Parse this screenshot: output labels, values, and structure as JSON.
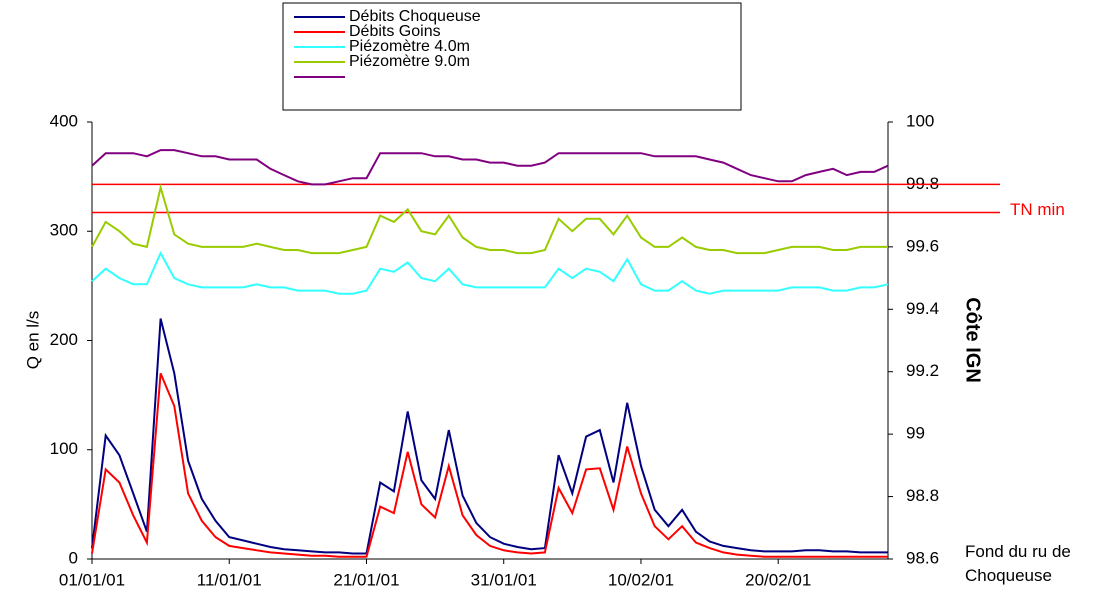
{
  "chart_data": {
    "type": "line",
    "x": [
      "2001-01-01",
      "2001-01-02",
      "2001-01-03",
      "2001-01-04",
      "2001-01-05",
      "2001-01-06",
      "2001-01-07",
      "2001-01-08",
      "2001-01-09",
      "2001-01-10",
      "2001-01-11",
      "2001-01-12",
      "2001-01-13",
      "2001-01-14",
      "2001-01-15",
      "2001-01-16",
      "2001-01-17",
      "2001-01-18",
      "2001-01-19",
      "2001-01-20",
      "2001-01-21",
      "2001-01-22",
      "2001-01-23",
      "2001-01-24",
      "2001-01-25",
      "2001-01-26",
      "2001-01-27",
      "2001-01-28",
      "2001-01-29",
      "2001-01-30",
      "2001-01-31",
      "2001-02-01",
      "2001-02-02",
      "2001-02-03",
      "2001-02-04",
      "2001-02-05",
      "2001-02-06",
      "2001-02-07",
      "2001-02-08",
      "2001-02-09",
      "2001-02-10",
      "2001-02-11",
      "2001-02-12",
      "2001-02-13",
      "2001-02-14",
      "2001-02-15",
      "2001-02-16",
      "2001-02-17",
      "2001-02-18",
      "2001-02-19",
      "2001-02-20",
      "2001-02-21",
      "2001-02-22",
      "2001-02-23",
      "2001-02-24",
      "2001-02-25",
      "2001-02-26",
      "2001-02-27",
      "2001-02-28"
    ],
    "xlim": [
      "2001-01-01",
      "2001-02-28"
    ],
    "xticks": [
      {
        "value": "2001-01-01",
        "label": "01/01/01"
      },
      {
        "value": "2001-01-11",
        "label": "11/01/01"
      },
      {
        "value": "2001-01-21",
        "label": "21/01/01"
      },
      {
        "value": "2001-01-31",
        "label": "31/01/01"
      },
      {
        "value": "2001-02-10",
        "label": "10/02/01"
      },
      {
        "value": "2001-02-20",
        "label": "20/02/01"
      }
    ],
    "ylabel": "Q en l/s",
    "ylim": [
      0,
      400
    ],
    "yticks": [
      0,
      100,
      200,
      300,
      400
    ],
    "y2label": "Côte IGN",
    "y2lim": [
      98.6,
      100
    ],
    "y2ticks": [
      98.6,
      98.8,
      99,
      99.2,
      99.4,
      99.6,
      99.8,
      100
    ],
    "legend": "top",
    "series": [
      {
        "name": "Débits Choqueuse",
        "color": "#000080",
        "values": [
          10,
          113,
          95,
          60,
          25,
          220,
          170,
          90,
          55,
          35,
          20,
          17,
          14,
          11,
          9,
          8,
          7,
          6,
          6,
          5,
          5,
          70,
          62,
          135,
          72,
          55,
          118,
          58,
          33,
          20,
          14,
          11,
          9,
          10,
          95,
          60,
          112,
          118,
          70,
          143,
          85,
          45,
          30,
          45,
          25,
          16,
          12,
          10,
          8,
          7,
          7,
          7,
          8,
          8,
          7,
          7,
          6,
          6,
          6
        ]
      },
      {
        "name": "Débits Goins",
        "color": "#ff0000",
        "values": [
          5,
          82,
          70,
          40,
          15,
          170,
          140,
          60,
          35,
          20,
          12,
          10,
          8,
          6,
          5,
          4,
          3,
          3,
          2,
          2,
          2,
          48,
          42,
          98,
          50,
          38,
          85,
          40,
          22,
          12,
          8,
          6,
          5,
          6,
          65,
          42,
          82,
          83,
          45,
          103,
          60,
          30,
          18,
          30,
          15,
          10,
          6,
          4,
          3,
          2,
          2,
          2,
          2,
          2,
          2,
          2,
          2,
          2,
          2
        ]
      },
      {
        "name": "Piézomètre 4.0m",
        "color": "#33ffff",
        "axis": "y2",
        "values": [
          99.49,
          99.53,
          99.5,
          99.48,
          99.48,
          99.58,
          99.5,
          99.48,
          99.47,
          99.47,
          99.47,
          99.47,
          99.48,
          99.47,
          99.47,
          99.46,
          99.46,
          99.46,
          99.45,
          99.45,
          99.46,
          99.53,
          99.52,
          99.55,
          99.5,
          99.49,
          99.53,
          99.48,
          99.47,
          99.47,
          99.47,
          99.47,
          99.47,
          99.47,
          99.53,
          99.5,
          99.53,
          99.52,
          99.49,
          99.56,
          99.48,
          99.46,
          99.46,
          99.49,
          99.46,
          99.45,
          99.46,
          99.46,
          99.46,
          99.46,
          99.46,
          99.47,
          99.47,
          99.47,
          99.46,
          99.46,
          99.47,
          99.47,
          99.48
        ]
      },
      {
        "name": "Piézomètre 9.0m",
        "color": "#99cc00",
        "axis": "y2",
        "values": [
          99.6,
          99.68,
          99.65,
          99.61,
          99.6,
          99.79,
          99.64,
          99.61,
          99.6,
          99.6,
          99.6,
          99.6,
          99.61,
          99.6,
          99.59,
          99.59,
          99.58,
          99.58,
          99.58,
          99.59,
          99.6,
          99.7,
          99.68,
          99.72,
          99.65,
          99.64,
          99.7,
          99.63,
          99.6,
          99.59,
          99.59,
          99.58,
          99.58,
          99.59,
          99.69,
          99.65,
          99.69,
          99.69,
          99.64,
          99.7,
          99.63,
          99.6,
          99.6,
          99.63,
          99.6,
          99.59,
          99.59,
          99.58,
          99.58,
          99.58,
          99.59,
          99.6,
          99.6,
          99.6,
          99.59,
          99.59,
          99.6,
          99.6,
          99.6
        ]
      },
      {
        "color": "#800080",
        "axis": "y2",
        "values": [
          99.86,
          99.9,
          99.9,
          99.9,
          99.89,
          99.91,
          99.91,
          99.9,
          99.89,
          99.89,
          99.88,
          99.88,
          99.88,
          99.85,
          99.83,
          99.81,
          99.8,
          99.8,
          99.81,
          99.82,
          99.82,
          99.9,
          99.9,
          99.9,
          99.9,
          99.89,
          99.89,
          99.88,
          99.88,
          99.87,
          99.87,
          99.86,
          99.86,
          99.87,
          99.9,
          99.9,
          99.9,
          99.9,
          99.9,
          99.9,
          99.9,
          99.89,
          99.89,
          99.89,
          99.89,
          99.88,
          99.87,
          99.85,
          99.83,
          99.82,
          99.81,
          99.81,
          99.83,
          99.84,
          99.85,
          99.83,
          99.84,
          99.84,
          99.86
        ]
      }
    ],
    "hlines": [
      {
        "value": 99.8,
        "color": "#ff0000",
        "axis": "y2"
      },
      {
        "value": 99.71,
        "color": "#ff0000",
        "axis": "y2",
        "label": "TN min"
      }
    ],
    "y2_floor_label": "Fond du ru de Choqueuse"
  }
}
